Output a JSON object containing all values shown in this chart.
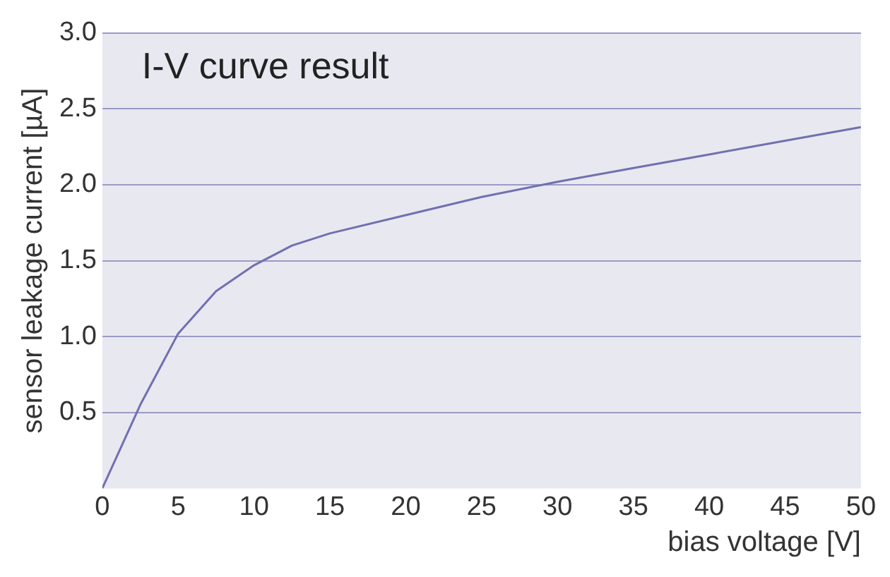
{
  "chart_data": {
    "type": "line",
    "title": "I-V curve result",
    "xlabel": "bias voltage [V]",
    "ylabel": "sensor leakage current [µA]",
    "x": [
      0,
      1,
      2.5,
      5,
      7.5,
      10,
      12.5,
      15,
      20,
      25,
      30,
      35,
      40,
      45,
      50
    ],
    "series": [
      {
        "color": "#7070b0",
        "values": [
          0,
          0.22,
          0.55,
          1.02,
          1.3,
          1.47,
          1.6,
          1.68,
          1.8,
          1.92,
          2.02,
          2.11,
          2.2,
          2.29,
          2.38
        ]
      }
    ],
    "xlim": [
      0,
      50
    ],
    "xticks": [
      0,
      5,
      10,
      15,
      20,
      25,
      30,
      35,
      40,
      45,
      50
    ],
    "ylim": [
      0,
      3
    ],
    "yticks": [
      0.5,
      {
        "value": 1,
        "label": "1.0"
      },
      1.5,
      {
        "value": 2,
        "label": "2.0"
      },
      2.5,
      {
        "value": 3,
        "label": "3.0"
      }
    ],
    "grid": "y",
    "legend": false,
    "marker": "none",
    "line_style": "solid"
  }
}
